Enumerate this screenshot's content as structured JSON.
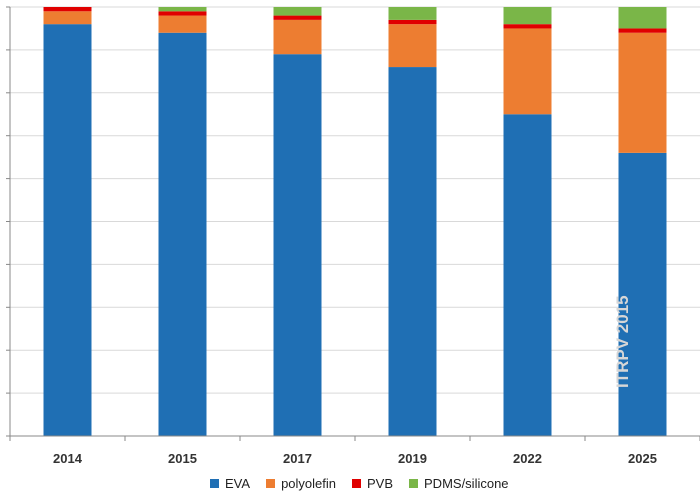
{
  "chart_data": {
    "type": "bar",
    "stacked": true,
    "title": "",
    "xlabel": "",
    "ylabel": "",
    "ylim": [
      0,
      100
    ],
    "categories": [
      "2014",
      "2015",
      "2017",
      "2019",
      "2022",
      "2025"
    ],
    "series": [
      {
        "name": "EVA",
        "color": "#1f6fb4",
        "values": [
          96,
          94,
          89,
          86,
          75,
          66
        ]
      },
      {
        "name": "polyolefin",
        "color": "#ed7d31",
        "values": [
          3,
          4,
          8,
          10,
          20,
          28
        ]
      },
      {
        "name": "PVB",
        "color": "#e00000",
        "values": [
          1,
          1,
          1,
          1,
          1,
          1
        ]
      },
      {
        "name": "PDMS/silicone",
        "color": "#7ab648",
        "values": [
          0,
          1,
          2,
          3,
          4,
          5
        ]
      }
    ],
    "legend_position": "bottom",
    "watermark": "ITRPV 2015"
  }
}
